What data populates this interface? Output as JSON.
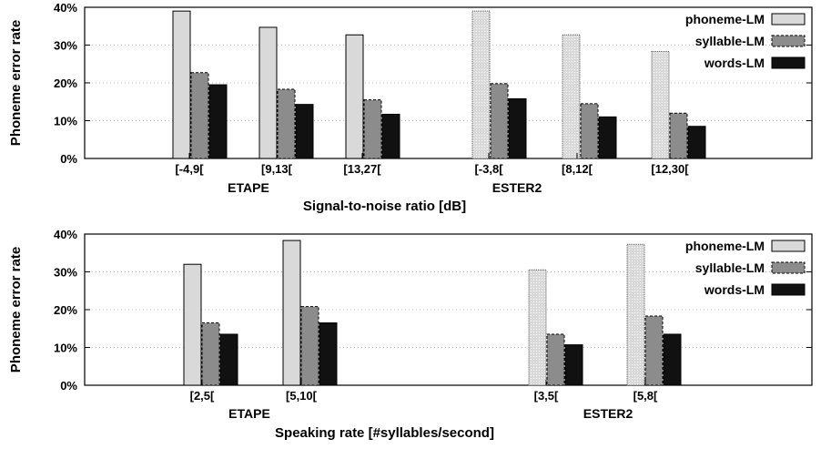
{
  "colors": {
    "phoneme": "#d9d9d9",
    "syllable": "#8c8c8c",
    "words": "#111111"
  },
  "chart_data": [
    {
      "type": "bar",
      "ylabel": "Phoneme error rate",
      "xlabel": "Signal-to-noise ratio [dB]",
      "ylim": [
        0,
        40
      ],
      "yticks": [
        "0%",
        "10%",
        "20%",
        "30%",
        "40%"
      ],
      "grid": true,
      "legend_position": "top-right",
      "groups": [
        {
          "label": "ETAPE",
          "categories": [
            "[-4,9[",
            "[9,13[",
            "[13,27["
          ]
        },
        {
          "label": "ESTER2",
          "categories": [
            "[-3,8[",
            "[8,12[",
            "[12,30["
          ]
        }
      ],
      "categories": [
        "[-4,9[",
        "[9,13[",
        "[13,27[",
        "[-3,8[",
        "[8,12[",
        "[12,30["
      ],
      "series": [
        {
          "name": "phoneme-LM",
          "values": [
            39,
            34.7,
            32.7,
            39,
            32.7,
            28.3
          ]
        },
        {
          "name": "syllable-LM",
          "values": [
            22.7,
            18.3,
            15.5,
            19.8,
            14.5,
            12
          ]
        },
        {
          "name": "words-LM",
          "values": [
            19.5,
            14.3,
            11.7,
            15.8,
            11,
            8.5
          ]
        }
      ]
    },
    {
      "type": "bar",
      "ylabel": "Phoneme error rate",
      "xlabel": "Speaking rate [#syllables/second]",
      "ylim": [
        0,
        40
      ],
      "yticks": [
        "0%",
        "10%",
        "20%",
        "30%",
        "40%"
      ],
      "grid": true,
      "legend_position": "top-right",
      "groups": [
        {
          "label": "ETAPE",
          "categories": [
            "[2,5[",
            "[5,10["
          ]
        },
        {
          "label": "ESTER2",
          "categories": [
            "[3,5[",
            "[5,8["
          ]
        }
      ],
      "categories": [
        "[2,5[",
        "[5,10[",
        "[3,5[",
        "[5,8["
      ],
      "series": [
        {
          "name": "phoneme-LM",
          "values": [
            32,
            38.3,
            30.5,
            37.3
          ]
        },
        {
          "name": "syllable-LM",
          "values": [
            16.5,
            20.8,
            13.5,
            18.3
          ]
        },
        {
          "name": "words-LM",
          "values": [
            13.5,
            16.5,
            10.7,
            13.5
          ]
        }
      ]
    }
  ]
}
